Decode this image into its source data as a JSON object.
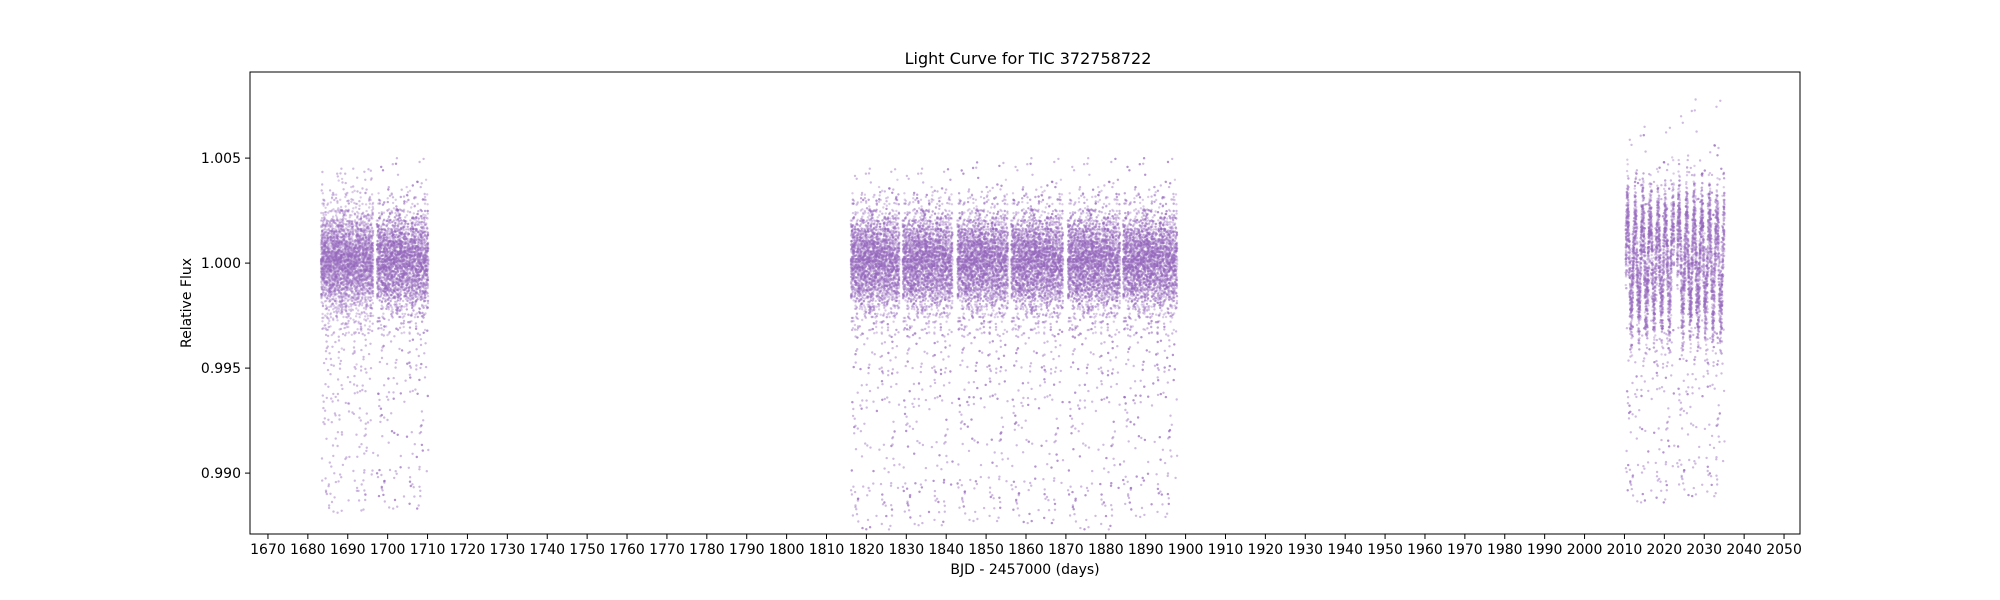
{
  "chart_data": {
    "type": "scatter",
    "title": "Light Curve for TIC 372758722",
    "xlabel": "BJD - 2457000 (days)",
    "ylabel": "Relative Flux",
    "xlim": [
      1665.5,
      2054
    ],
    "ylim": [
      0.9871,
      1.0091
    ],
    "x_ticks": [
      1670,
      1680,
      1690,
      1700,
      1710,
      1720,
      1730,
      1740,
      1750,
      1760,
      1770,
      1780,
      1790,
      1800,
      1810,
      1820,
      1830,
      1840,
      1850,
      1860,
      1870,
      1880,
      1890,
      1900,
      1910,
      1920,
      1930,
      1940,
      1950,
      1960,
      1970,
      1980,
      1990,
      2000,
      2010,
      2020,
      2030,
      2040,
      2050
    ],
    "y_ticks": [
      {
        "value": 0.99,
        "label": "0.990"
      },
      {
        "value": 0.995,
        "label": "0.995"
      },
      {
        "value": 1.0,
        "label": "1.000"
      },
      {
        "value": 1.005,
        "label": "1.005"
      }
    ],
    "grid": false,
    "marker_color": "#9467bd",
    "series": [
      {
        "segments": [
          {
            "x_start": 1683.3,
            "x_end": 1696.4,
            "center": 1.0,
            "spread": 0.0012,
            "dip_low": 0.988,
            "high": 1.0045,
            "oscillation_amp": 0.0
          },
          {
            "x_start": 1697.3,
            "x_end": 1710.2,
            "center": 1.0,
            "spread": 0.0012,
            "dip_low": 0.9882,
            "high": 1.005,
            "oscillation_amp": 0.0
          },
          {
            "x_start": 1816.1,
            "x_end": 1828.3,
            "center": 1.0,
            "spread": 0.0012,
            "dip_low": 0.9872,
            "high": 1.0045,
            "oscillation_amp": 0.0
          },
          {
            "x_start": 1829.1,
            "x_end": 1841.6,
            "center": 1.0,
            "spread": 0.0012,
            "dip_low": 0.9874,
            "high": 1.0045,
            "oscillation_amp": 0.0
          },
          {
            "x_start": 1842.8,
            "x_end": 1855.5,
            "center": 1.0,
            "spread": 0.0012,
            "dip_low": 0.9876,
            "high": 1.0048,
            "oscillation_amp": 0.0
          },
          {
            "x_start": 1856.3,
            "x_end": 1869.3,
            "center": 1.0,
            "spread": 0.0012,
            "dip_low": 0.9875,
            "high": 1.005,
            "oscillation_amp": 0.0
          },
          {
            "x_start": 1870.5,
            "x_end": 1883.6,
            "center": 1.0,
            "spread": 0.0012,
            "dip_low": 0.9872,
            "high": 1.005,
            "oscillation_amp": 0.0
          },
          {
            "x_start": 1884.3,
            "x_end": 1897.9,
            "center": 1.0,
            "spread": 0.0012,
            "dip_low": 0.9878,
            "high": 1.005,
            "oscillation_amp": 0.0
          },
          {
            "x_start": 2010.3,
            "x_end": 2022.5,
            "center": 1.0,
            "spread": 0.001,
            "dip_low": 0.9885,
            "high": 1.0065,
            "oscillation_amp": 0.0022
          },
          {
            "x_start": 2023.2,
            "x_end": 2035.1,
            "center": 1.0,
            "spread": 0.001,
            "dip_low": 0.9888,
            "high": 1.0078,
            "oscillation_amp": 0.0022
          }
        ]
      }
    ]
  }
}
